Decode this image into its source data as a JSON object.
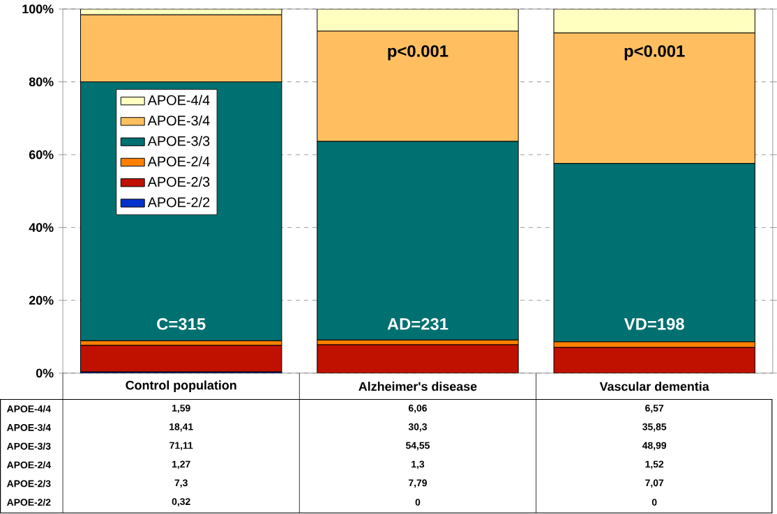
{
  "chart_data": {
    "type": "bar",
    "stacked": true,
    "categories": [
      "Control population",
      "Alzheimer's disease",
      "Vascular dementia"
    ],
    "series": [
      {
        "name": "APOE-2/2",
        "color": "#0033cc",
        "values": [
          0.32,
          0,
          0
        ],
        "value_labels": [
          "0,32",
          "0",
          "0"
        ]
      },
      {
        "name": "APOE-2/3",
        "color": "#c01000",
        "values": [
          7.3,
          7.79,
          7.07
        ],
        "value_labels": [
          "7,3",
          "7,79",
          "7,07"
        ]
      },
      {
        "name": "APOE-2/4",
        "color": "#ff8000",
        "values": [
          1.27,
          1.3,
          1.52
        ],
        "value_labels": [
          "1,27",
          "1,3",
          "1,52"
        ]
      },
      {
        "name": "APOE-3/3",
        "color": "#007070",
        "values": [
          71.11,
          54.55,
          48.99
        ],
        "value_labels": [
          "71,11",
          "54,55",
          "48,99"
        ]
      },
      {
        "name": "APOE-3/4",
        "color": "#ffbf60",
        "values": [
          18.41,
          30.3,
          35.85
        ],
        "value_labels": [
          "18,41",
          "30,3",
          "35,85"
        ]
      },
      {
        "name": "APOE-4/4",
        "color": "#ffffc0",
        "values": [
          1.59,
          6.06,
          6.57
        ],
        "value_labels": [
          "1,59",
          "6,06",
          "6,57"
        ]
      }
    ],
    "ylim": [
      0,
      100
    ],
    "yticks": [
      {
        "value": 0,
        "label": "0%"
      },
      {
        "value": 20,
        "label": "20%"
      },
      {
        "value": 40,
        "label": "40%"
      },
      {
        "value": 60,
        "label": "60%"
      },
      {
        "value": 80,
        "label": "80%"
      },
      {
        "value": 100,
        "label": "100%"
      }
    ],
    "grid": "y",
    "legend": "left",
    "annotations": [
      "p<0.001",
      "p<0.001",
      "C=315",
      "AD=231",
      "VD=198"
    ]
  }
}
